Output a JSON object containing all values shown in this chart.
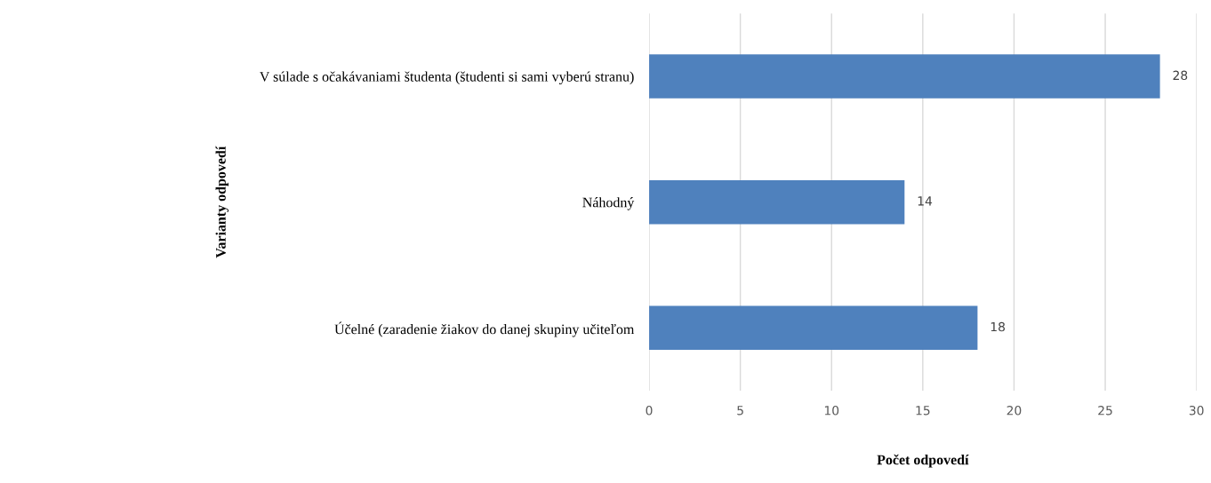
{
  "chart_data": {
    "type": "bar",
    "orientation": "horizontal",
    "categories": [
      "V súlade s očakávaniami študenta (študenti si sami vyberú stranu)",
      "Náhodný",
      "Účelné (zaradenie žiakov do danej skupiny učiteľom"
    ],
    "values": [
      28,
      14,
      18
    ],
    "color": "#4f81bd",
    "xlim": [
      0,
      30
    ],
    "xticks": [
      0,
      5,
      10,
      15,
      20,
      25,
      30
    ],
    "xlabel": "Počet odpovedí",
    "ylabel": "Varianty odpovedí",
    "grid": "x",
    "data_labels": true,
    "legend": false
  }
}
